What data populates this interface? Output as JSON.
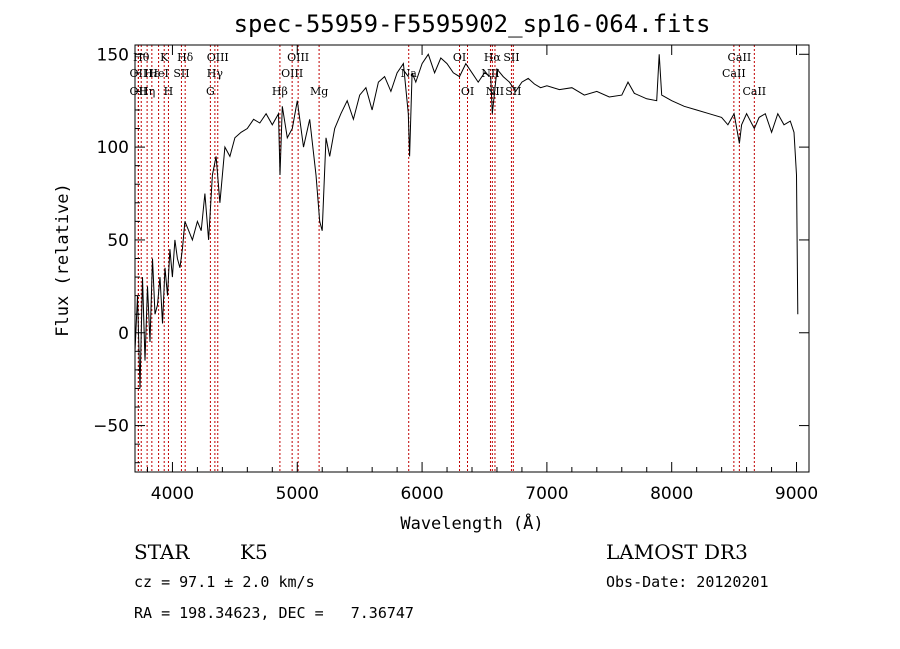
{
  "chart_data": {
    "type": "line",
    "title": "spec-55959-F5595902_sp16-064.fits",
    "xlabel": "Wavelength (Å)",
    "ylabel": "Flux (relative)",
    "xlim": [
      3700,
      9100
    ],
    "ylim": [
      -75,
      155
    ],
    "xticks": [
      4000,
      5000,
      6000,
      7000,
      8000,
      9000
    ],
    "yticks": [
      -50,
      0,
      50,
      100,
      150
    ],
    "series": [
      {
        "name": "flux",
        "x": [
          3700,
          3720,
          3740,
          3760,
          3780,
          3800,
          3820,
          3840,
          3860,
          3880,
          3900,
          3920,
          3940,
          3960,
          3980,
          4000,
          4020,
          4040,
          4060,
          4080,
          4100,
          4130,
          4160,
          4200,
          4230,
          4260,
          4290,
          4320,
          4350,
          4380,
          4420,
          4460,
          4500,
          4550,
          4600,
          4650,
          4700,
          4750,
          4800,
          4850,
          4862,
          4880,
          4920,
          4960,
          5000,
          5050,
          5100,
          5150,
          5180,
          5200,
          5230,
          5260,
          5300,
          5350,
          5400,
          5450,
          5500,
          5550,
          5600,
          5650,
          5700,
          5750,
          5800,
          5850,
          5890,
          5900,
          5920,
          5950,
          6000,
          6050,
          6100,
          6150,
          6200,
          6250,
          6300,
          6350,
          6400,
          6450,
          6500,
          6550,
          6563,
          6600,
          6650,
          6700,
          6750,
          6800,
          6850,
          6900,
          6950,
          7000,
          7100,
          7200,
          7300,
          7400,
          7500,
          7600,
          7650,
          7700,
          7800,
          7880,
          7900,
          7920,
          8000,
          8100,
          8200,
          8300,
          8400,
          8450,
          8500,
          8542,
          8560,
          8600,
          8662,
          8700,
          8750,
          8800,
          8850,
          8900,
          8950,
          8980,
          9000,
          9010
        ],
        "y": [
          -10,
          20,
          -30,
          30,
          -15,
          25,
          -5,
          40,
          10,
          15,
          30,
          5,
          35,
          20,
          45,
          30,
          50,
          40,
          35,
          45,
          60,
          55,
          50,
          60,
          55,
          75,
          50,
          85,
          95,
          70,
          100,
          95,
          105,
          108,
          110,
          115,
          113,
          118,
          112,
          118,
          85,
          122,
          105,
          110,
          125,
          100,
          115,
          85,
          60,
          55,
          105,
          95,
          110,
          118,
          125,
          115,
          128,
          132,
          120,
          135,
          138,
          130,
          140,
          145,
          118,
          95,
          140,
          135,
          145,
          150,
          140,
          148,
          145,
          140,
          138,
          145,
          140,
          135,
          140,
          138,
          118,
          142,
          138,
          135,
          130,
          135,
          137,
          134,
          132,
          133,
          131,
          132,
          128,
          130,
          127,
          128,
          135,
          129,
          126,
          125,
          150,
          128,
          125,
          122,
          120,
          118,
          116,
          112,
          118,
          102,
          112,
          118,
          110,
          116,
          118,
          108,
          118,
          112,
          114,
          108,
          85,
          10
        ]
      }
    ],
    "lines": [
      {
        "x": 3750,
        "label": "Hθ",
        "row": 1
      },
      {
        "x": 3727,
        "label": "OII",
        "row": 2
      },
      {
        "x": 3727,
        "label": "OII",
        "row": 3
      },
      {
        "x": 3797,
        "label": "Hη",
        "row": 3
      },
      {
        "x": 3835,
        "label": "Hε",
        "row": 2
      },
      {
        "x": 3889,
        "label": "HeI",
        "row": 2
      },
      {
        "x": 3934,
        "label": "K",
        "row": 1
      },
      {
        "x": 3968,
        "label": "H",
        "row": 3
      },
      {
        "x": 4072,
        "label": "SII",
        "row": 2
      },
      {
        "x": 4102,
        "label": "Hδ",
        "row": 1
      },
      {
        "x": 4304,
        "label": "G",
        "row": 3
      },
      {
        "x": 4340,
        "label": "Hγ",
        "row": 2
      },
      {
        "x": 4363,
        "label": "OIII",
        "row": 1
      },
      {
        "x": 4861,
        "label": "Hβ",
        "row": 3
      },
      {
        "x": 4959,
        "label": "OIII",
        "row": 2
      },
      {
        "x": 5007,
        "label": "OIII",
        "row": 1
      },
      {
        "x": 5175,
        "label": "Mg",
        "row": 3
      },
      {
        "x": 5893,
        "label": "Na",
        "row": 2
      },
      {
        "x": 6300,
        "label": "OI",
        "row": 1
      },
      {
        "x": 6364,
        "label": "OI",
        "row": 3
      },
      {
        "x": 6548,
        "label": "NII",
        "row": 2
      },
      {
        "x": 6563,
        "label": "Hα",
        "row": 1
      },
      {
        "x": 6584,
        "label": "NII",
        "row": 3
      },
      {
        "x": 6716,
        "label": "SII",
        "row": 1
      },
      {
        "x": 6731,
        "label": "SII",
        "row": 3
      },
      {
        "x": 8498,
        "label": "CaII",
        "row": 2
      },
      {
        "x": 8542,
        "label": "CaII",
        "row": 1
      },
      {
        "x": 8662,
        "label": "CaII",
        "row": 3
      }
    ],
    "line_color": "#c00000",
    "trace_color": "#000000"
  },
  "info": {
    "class": "STAR",
    "subclass": "K5",
    "survey": "LAMOST DR3",
    "redshift": "cz = 97.1 ± 2.0 km/s",
    "obs_date": "Obs-Date: 20120201",
    "coords": "RA = 198.34623, DEC =   7.36747"
  }
}
